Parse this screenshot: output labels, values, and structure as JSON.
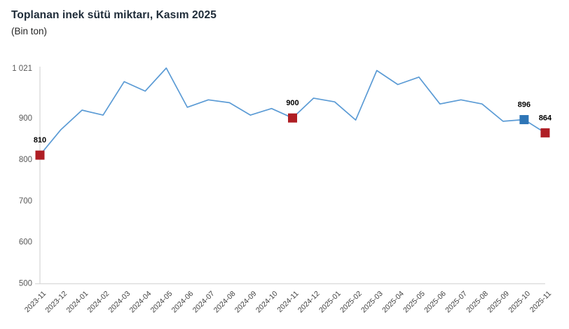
{
  "header": {
    "title": "Toplanan inek sütü miktarı, Kasım 2025",
    "subtitle": "(Bin ton)"
  },
  "colors": {
    "line": "#5B9BD5",
    "marker_red": "#AF1E24",
    "marker_blue": "#2E75B6",
    "axis_line": "#D9D9D9",
    "y_tick_text": "#595959",
    "x_tick_text": "#404040",
    "point_label_text": "#000000",
    "title_text": "#1E2B38"
  },
  "chart_data": {
    "type": "line",
    "title": "Toplanan inek sütü miktarı, Kasım 2025",
    "subtitle": "(Bin ton)",
    "xlabel": "",
    "ylabel": "Bin ton",
    "x": [
      "2023-11",
      "2023-12",
      "2024-01",
      "2024-02",
      "2024-03",
      "2024-04",
      "2024-05",
      "2024-06",
      "2024-07",
      "2024-08",
      "2024-09",
      "2024-10",
      "2024-11",
      "2024-12",
      "2025-01",
      "2025-02",
      "2025-03",
      "2025-04",
      "2025-05",
      "2025-06",
      "2025-07",
      "2025-08",
      "2025-09",
      "2025-10",
      "2025-11"
    ],
    "values": [
      810,
      872,
      919,
      907,
      988,
      965,
      1021,
      926,
      944,
      937,
      907,
      923,
      900,
      948,
      939,
      895,
      1015,
      981,
      999,
      934,
      944,
      934,
      892,
      896,
      864
    ],
    "ylim": [
      500,
      1021
    ],
    "y_ticks": [
      500,
      600,
      700,
      800,
      900,
      1021
    ],
    "y_tick_labels": [
      "500",
      "600",
      "700",
      "800",
      "900",
      "1 021"
    ],
    "grid": false,
    "legend_position": "none",
    "labeled_points": [
      {
        "x": "2023-11",
        "value": 810,
        "label": "810",
        "color": "red"
      },
      {
        "x": "2024-11",
        "value": 900,
        "label": "900",
        "color": "red"
      },
      {
        "x": "2025-10",
        "value": 896,
        "label": "896",
        "color": "blue"
      },
      {
        "x": "2025-11",
        "value": 864,
        "label": "864",
        "color": "red"
      }
    ]
  }
}
